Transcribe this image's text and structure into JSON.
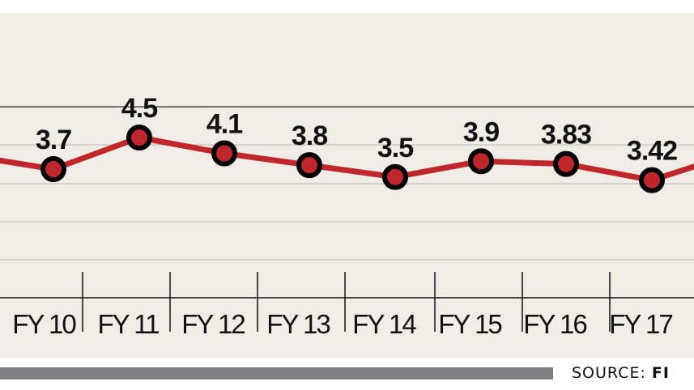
{
  "chart_data": {
    "type": "line",
    "title": "",
    "xlabel": "",
    "ylabel": "",
    "categories": [
      "FY 10",
      "FY 11",
      "FY 12",
      "FY 13",
      "FY 14",
      "FY 15",
      "FY 16",
      "FY 17"
    ],
    "series": [
      {
        "name": "value",
        "values": [
          3.7,
          4.5,
          4.1,
          3.8,
          3.5,
          3.9,
          3.83,
          3.42
        ]
      }
    ],
    "data_labels": [
      "3.7",
      "4.5",
      "4.1",
      "3.8",
      "3.5",
      "3.9",
      "3.83",
      "3.42"
    ],
    "grid": true,
    "legend": "none",
    "line_color": "#c0272d",
    "marker_color": "#c0272d",
    "marker_edge_color": "#000000"
  },
  "footer": {
    "source_label": "SOURCE: ",
    "source_value": "FI"
  }
}
